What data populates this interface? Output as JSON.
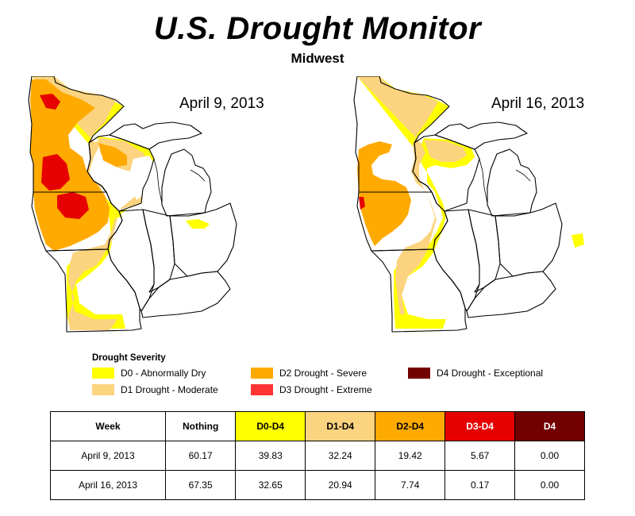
{
  "header": {
    "title": "U.S. Drought Monitor",
    "subtitle": "Midwest"
  },
  "maps": [
    {
      "date": "April 9, 2013"
    },
    {
      "date": "April 16, 2013"
    }
  ],
  "legend": {
    "title": "Drought Severity",
    "items": [
      {
        "label": "D0 - Abnormally Dry",
        "color": "#ffff00"
      },
      {
        "label": "D1 Drought - Moderate",
        "color": "#fcd37f"
      },
      {
        "label": "D2 Drought - Severe",
        "color": "#ffaa00"
      },
      {
        "label": "D3 Drought - Extreme",
        "color": "#e60000"
      },
      {
        "label": "D4 Drought - Exceptional",
        "color": "#730000"
      }
    ]
  },
  "table": {
    "headers": [
      "Week",
      "Nothing",
      "D0-D4",
      "D1-D4",
      "D2-D4",
      "D3-D4",
      "D4"
    ],
    "header_colors": [
      "#ffffff",
      "#ffffff",
      "#ffff00",
      "#fcd37f",
      "#ffaa00",
      "#e60000",
      "#730000"
    ],
    "header_text_colors": [
      "#000000",
      "#000000",
      "#000000",
      "#000000",
      "#000000",
      "#ffffff",
      "#ffffff"
    ],
    "rows": [
      [
        "April 9, 2013",
        "60.17",
        "39.83",
        "32.24",
        "19.42",
        "5.67",
        "0.00"
      ],
      [
        "April 16, 2013",
        "67.35",
        "32.65",
        "20.94",
        "7.74",
        "0.17",
        "0.00"
      ]
    ]
  }
}
